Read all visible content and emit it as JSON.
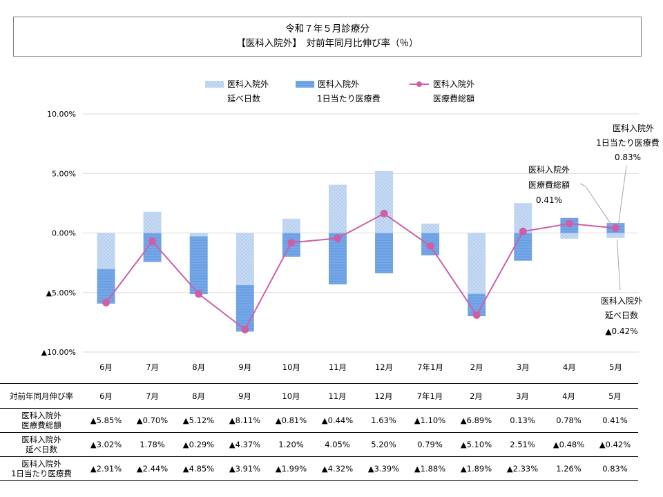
{
  "title": {
    "line1": "令和７年５月診療分",
    "line2": "【医科入院外】　対前年同月比伸び率（％）"
  },
  "colors": {
    "days_bar": "#9dc0ea",
    "cost_bar": "#6a9fe4",
    "total_line": "#cf5ea6",
    "grid": "#d9d9d9"
  },
  "legend": [
    {
      "id": "days",
      "line1": "医科入院外",
      "line2": "延べ日数",
      "style": "pattern-light"
    },
    {
      "id": "cost",
      "line1": "医科入院外",
      "line2": "1日当たり医療費",
      "style": "pattern-dark"
    },
    {
      "id": "total",
      "line1": "医科入院外",
      "line2": "医療費総額",
      "style": "line-marker"
    }
  ],
  "chart_data": {
    "type": "bar",
    "categories": [
      "6月",
      "7月",
      "8月",
      "9月",
      "10月",
      "11月",
      "12月",
      "7年1月",
      "2月",
      "3月",
      "4月",
      "5月"
    ],
    "ylim": [
      -10,
      10
    ],
    "yticks": [
      10,
      5,
      0,
      -5,
      -10
    ],
    "ytick_labels": [
      "10.00%",
      "5.00%",
      "0.00%",
      "▲5.00%",
      "▲10.00%"
    ],
    "grid": true,
    "stacked": true,
    "series": [
      {
        "name": "医科入院外 延べ日数",
        "kind": "bar",
        "values": [
          -3.02,
          1.78,
          -0.29,
          -4.37,
          1.2,
          4.05,
          5.2,
          0.79,
          -5.1,
          2.51,
          -0.48,
          -0.42
        ]
      },
      {
        "name": "医科入院外 1日当たり医療費",
        "kind": "bar",
        "values": [
          -2.91,
          -2.44,
          -4.85,
          -3.91,
          -1.99,
          -4.32,
          -3.39,
          -1.88,
          -1.89,
          -2.33,
          1.26,
          0.83
        ]
      },
      {
        "name": "医科入院外 医療費総額",
        "kind": "line",
        "values": [
          -5.85,
          -0.7,
          -5.12,
          -8.11,
          -0.81,
          -0.44,
          1.63,
          -1.1,
          -6.89,
          0.13,
          0.78,
          0.41
        ]
      }
    ],
    "annotations": [
      {
        "series": "cost",
        "category": "5月",
        "lines": [
          "医科入院外",
          "1日当たり医療費",
          "0.83%"
        ]
      },
      {
        "series": "total",
        "category": "5月",
        "lines": [
          "医科入院外",
          "医療費総額",
          "0.41%"
        ]
      },
      {
        "series": "days",
        "category": "5月",
        "lines": [
          "医科入院外",
          "延べ日数",
          "▲0.42%"
        ]
      }
    ]
  },
  "table": {
    "header_label": "対前年同月伸び率",
    "months": [
      "6月",
      "7月",
      "8月",
      "9月",
      "10月",
      "11月",
      "12月",
      "7年1月",
      "2月",
      "3月",
      "4月",
      "5月"
    ],
    "rows": [
      {
        "label1": "医科入院外",
        "label2": "医療費総額",
        "values": [
          "▲5.85%",
          "▲0.70%",
          "▲5.12%",
          "▲8.11%",
          "▲0.81%",
          "▲0.44%",
          "1.63%",
          "▲1.10%",
          "▲6.89%",
          "0.13%",
          "0.78%",
          "0.41%"
        ]
      },
      {
        "label1": "医科入院外",
        "label2": "延べ日数",
        "values": [
          "▲3.02%",
          "1.78%",
          "▲0.29%",
          "▲4.37%",
          "1.20%",
          "4.05%",
          "5.20%",
          "0.79%",
          "▲5.10%",
          "2.51%",
          "▲0.48%",
          "▲0.42%"
        ]
      },
      {
        "label1": "医科入院外",
        "label2": "1日当たり医療費",
        "values": [
          "▲2.91%",
          "▲2.44%",
          "▲4.85%",
          "▲3.91%",
          "▲1.99%",
          "▲4.32%",
          "▲3.39%",
          "▲1.88%",
          "▲1.89%",
          "▲2.33%",
          "1.26%",
          "0.83%"
        ]
      }
    ]
  }
}
